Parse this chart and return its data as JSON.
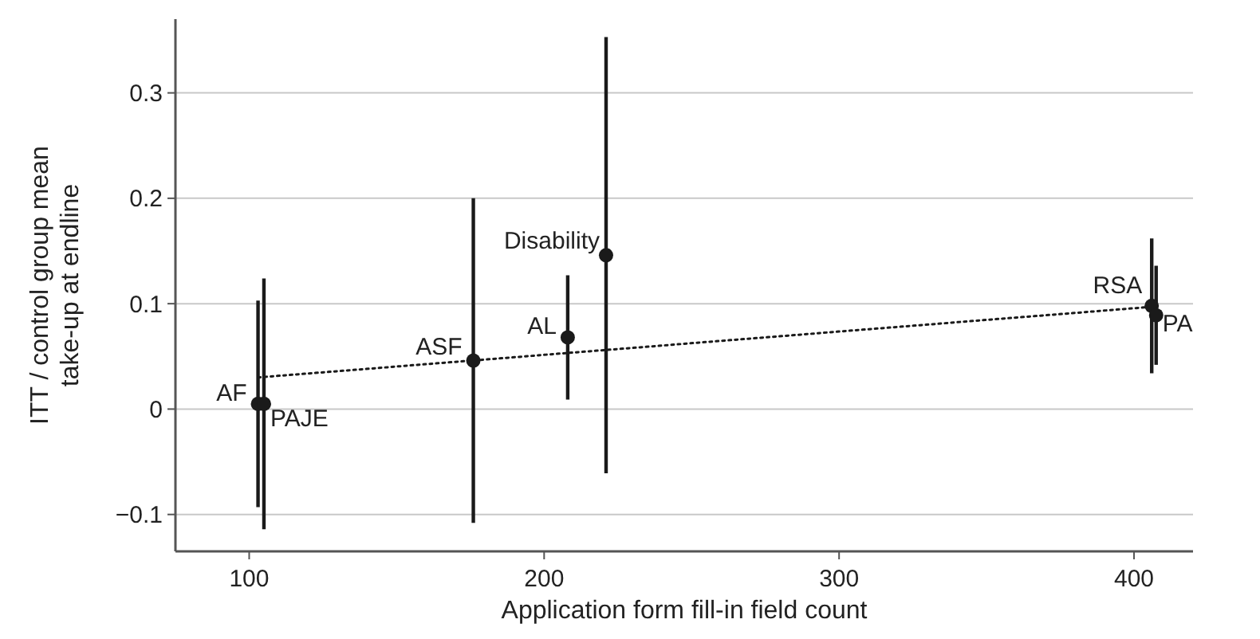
{
  "chart_data": {
    "type": "scatter",
    "xlabel": "Application form fill-in field count",
    "ylabel": "ITT / control group mean\ntake-up at endline",
    "xlim": [
      75,
      420
    ],
    "ylim": [
      -0.135,
      0.37
    ],
    "xticks": [
      100,
      200,
      300,
      400
    ],
    "yticks": [
      {
        "value": -0.1,
        "label": "−0.1"
      },
      0,
      0.1,
      0.2,
      0.3
    ],
    "grid": "y",
    "series": [
      {
        "marker": "circle",
        "color": "#1a1a1a",
        "x": [
          103,
          105,
          176,
          208,
          221,
          406,
          407.5
        ],
        "values": [
          0.005,
          0.005,
          0.046,
          0.068,
          0.146,
          0.098,
          0.089
        ],
        "errors": [
          0.098,
          0.119,
          0.154,
          0.059,
          0.207,
          0.064,
          0.047
        ]
      },
      {
        "type": "line",
        "color": "#1a1a1a",
        "line_style": "dotted",
        "x": [
          103,
          406
        ],
        "values": [
          0.03,
          0.097
        ]
      }
    ],
    "annotations": [
      {
        "text": "AF",
        "x": 103,
        "y": 0.005
      },
      {
        "text": "PAJE",
        "x": 105,
        "y": 0.005
      },
      {
        "text": "ASF",
        "x": 176,
        "y": 0.046
      },
      {
        "text": "AL",
        "x": 208,
        "y": 0.068
      },
      {
        "text": "Disability",
        "x": 221,
        "y": 0.146
      },
      {
        "text": "RSA",
        "x": 406,
        "y": 0.098
      },
      {
        "text": "PA",
        "x": 407.5,
        "y": 0.089
      }
    ]
  }
}
